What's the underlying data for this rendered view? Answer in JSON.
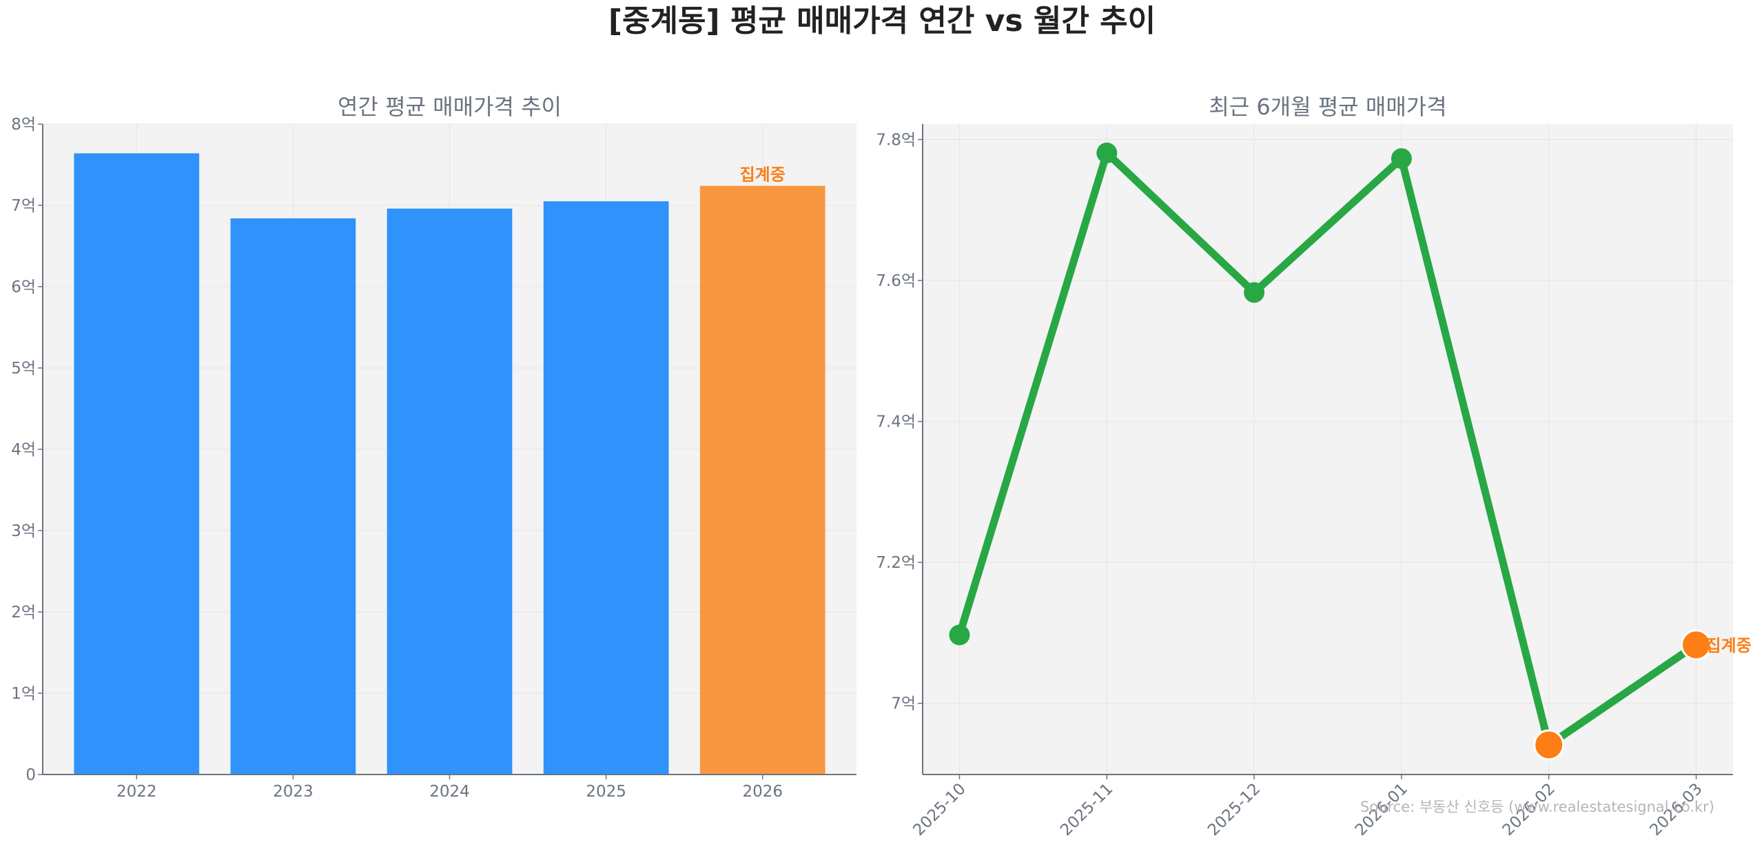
{
  "title": "[중계동] 평균 매매가격 연간 vs 월간 추이",
  "source": "Source: 부동산 신호등 (www.realestatesignal.co.kr)",
  "colors": {
    "blue": "#3092fb",
    "orange_bar": "#f99740",
    "orange": "#fd7e14",
    "green": "#28a745",
    "plot_bg": "#f3f3f3"
  },
  "chart_data": [
    {
      "type": "bar",
      "title": "연간 평균 매매가격 추이",
      "categories": [
        "2022",
        "2023",
        "2024",
        "2025",
        "2026"
      ],
      "values": [
        7.64,
        6.84,
        6.96,
        7.05,
        7.24
      ],
      "highlight": [
        false,
        false,
        false,
        false,
        true
      ],
      "annotation": {
        "index": 4,
        "text": "집계중"
      },
      "ylim": [
        0,
        8
      ],
      "yticks": [
        0,
        1,
        2,
        3,
        4,
        5,
        6,
        7,
        8
      ],
      "ytick_labels": [
        "0",
        "1억",
        "2억",
        "3억",
        "4억",
        "5억",
        "6억",
        "7억",
        "8억"
      ],
      "unit": "억",
      "grid": true
    },
    {
      "type": "line",
      "title": "최근 6개월 평균 매매가격",
      "x": [
        "2025-10",
        "2025-11",
        "2025-12",
        "2026-01",
        "2026-02",
        "2026-03"
      ],
      "values": [
        7.097,
        7.781,
        7.583,
        7.773,
        6.941,
        7.083
      ],
      "highlight": [
        false,
        false,
        false,
        false,
        true,
        true
      ],
      "annotation": {
        "index": 5,
        "text": "집계중"
      },
      "ylim": [
        6.899,
        7.822
      ],
      "yticks": [
        7.0,
        7.2,
        7.4,
        7.6,
        7.8
      ],
      "ytick_labels": [
        "7억",
        "7.2억",
        "7.4억",
        "7.6억",
        "7.8억"
      ],
      "unit": "억",
      "grid": true
    }
  ]
}
